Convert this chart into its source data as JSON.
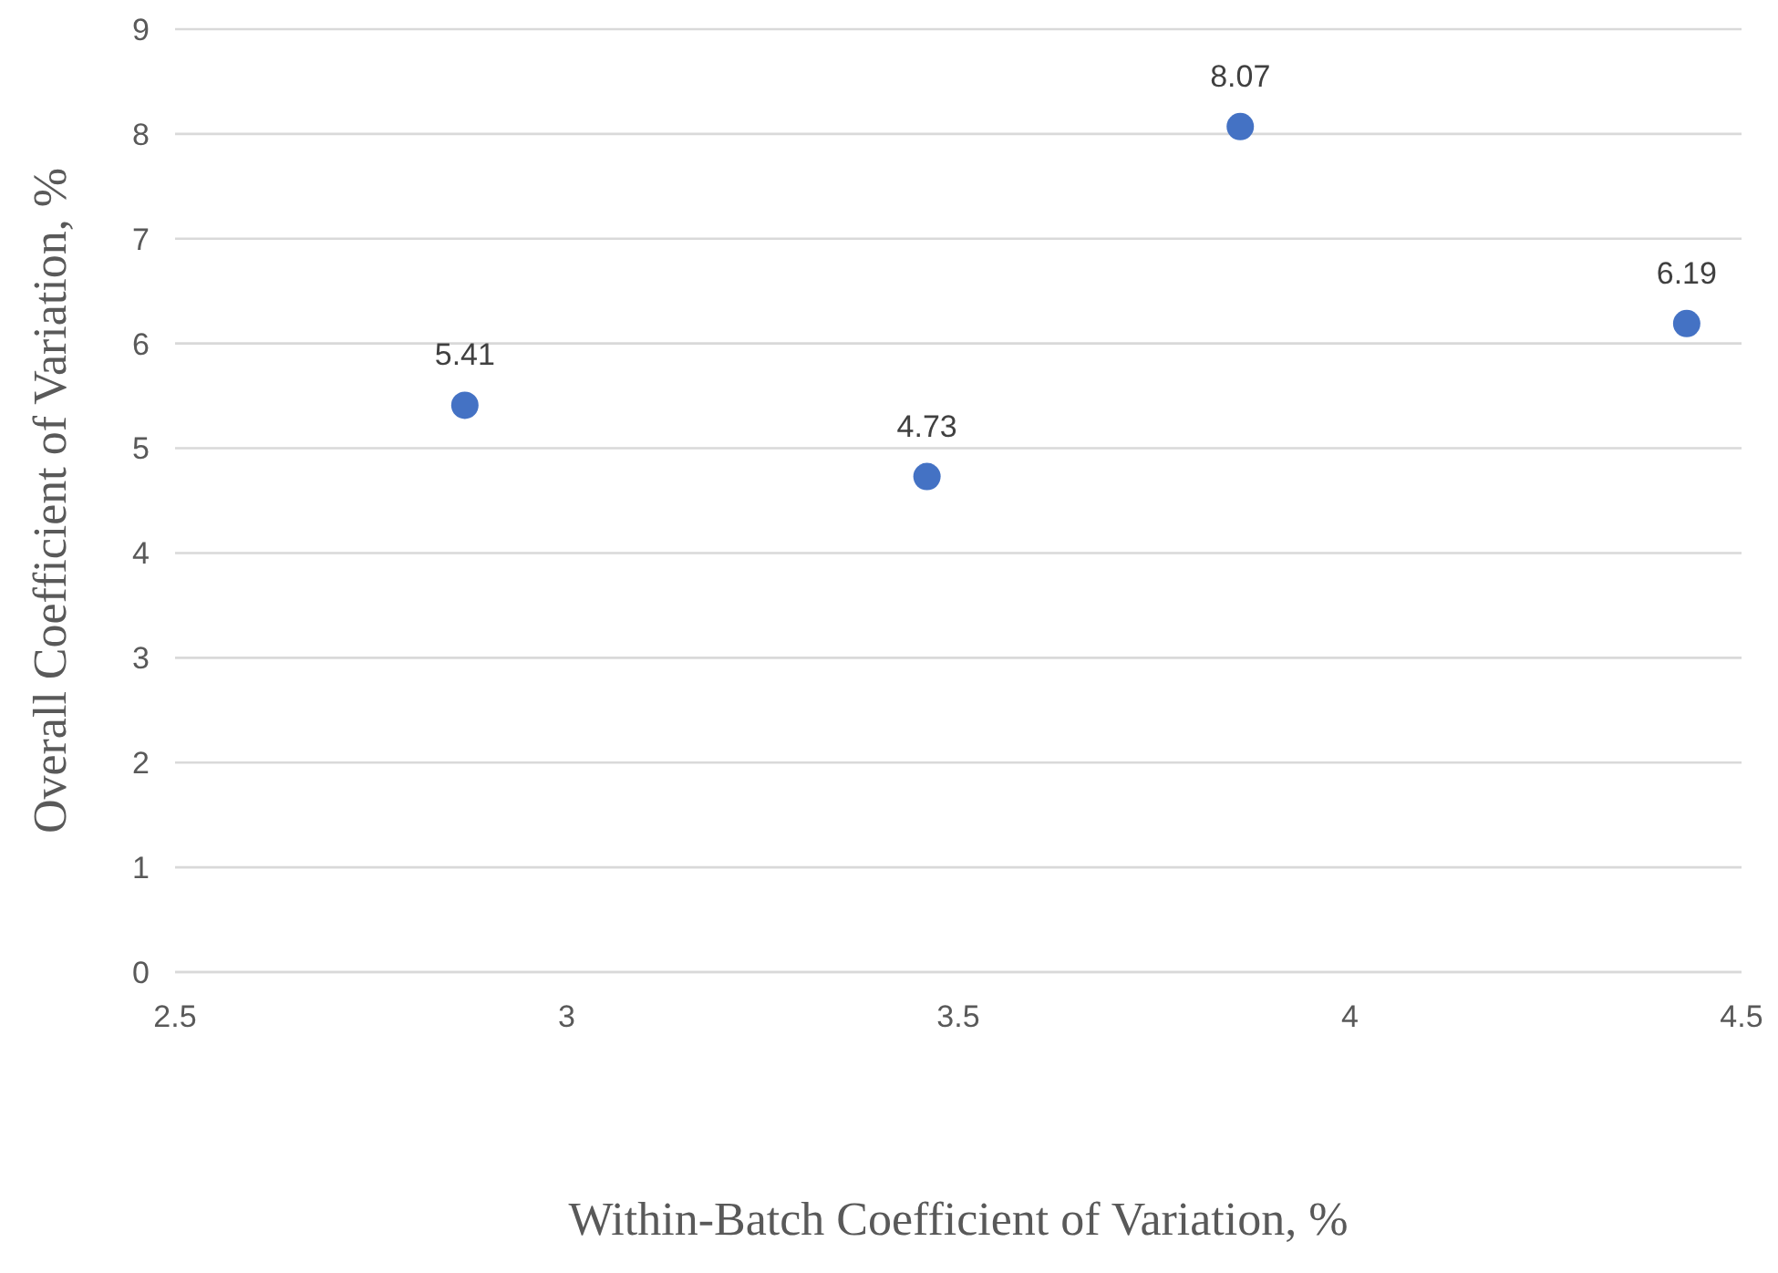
{
  "chart_data": {
    "type": "scatter",
    "xlabel": "Within-Batch Coefficient of Variation, %",
    "ylabel": "Overall Coefficient of Variation, %",
    "x": [
      2.87,
      3.46,
      3.86,
      4.43
    ],
    "series": [
      {
        "color": "#4472c4",
        "values": [
          5.41,
          4.73,
          8.07,
          6.19
        ]
      }
    ],
    "xlim": [
      2.5,
      4.5
    ],
    "xticks": [
      2.5,
      3,
      3.5,
      4,
      4.5
    ],
    "ylim": [
      0,
      9
    ],
    "yticks": [
      0,
      1,
      2,
      3,
      4,
      5,
      6,
      7,
      8,
      9
    ],
    "grid": "y",
    "marker": "circle",
    "data_labels": true
  }
}
